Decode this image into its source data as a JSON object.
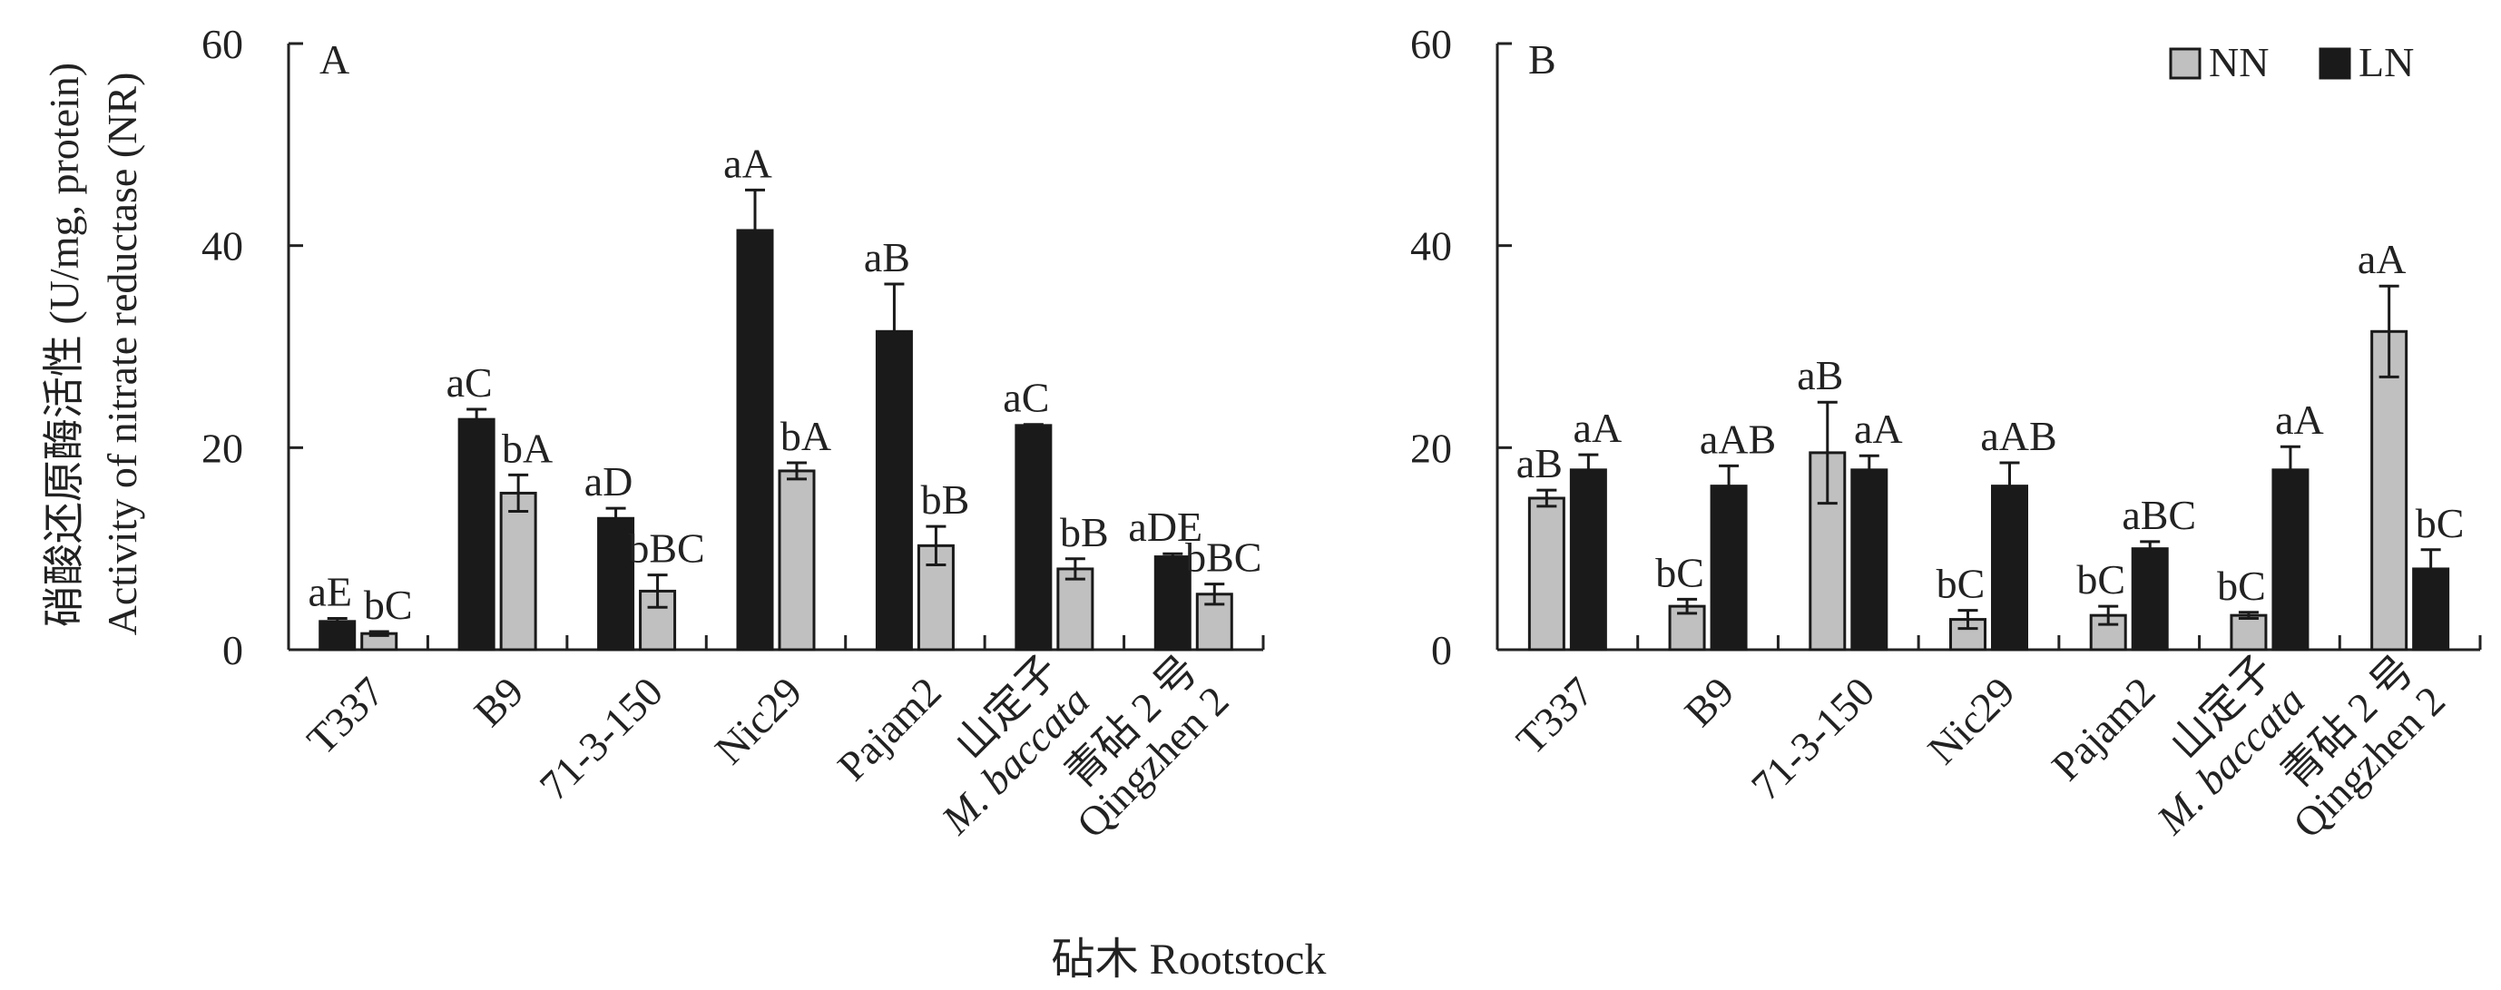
{
  "chart_data": [
    {
      "type": "bar",
      "panel": "A",
      "series_order": [
        "LN",
        "NN"
      ],
      "categories": [
        "T337",
        "B9",
        "71-3-150",
        "Nic29",
        "Pajam2",
        "山定子|M. baccata",
        "青砧 2 号|Qingzhen 2"
      ],
      "series": [
        {
          "name": "LN",
          "values": [
            2.8,
            22.8,
            13.0,
            41.5,
            31.5,
            22.2,
            9.2
          ],
          "errors": [
            0.3,
            1.0,
            1.0,
            4.0,
            4.7,
            0.1,
            0.3
          ],
          "labels": [
            "aE",
            "aC",
            "aD",
            "aA",
            "aB",
            "aC",
            "aDE"
          ]
        },
        {
          "name": "NN",
          "values": [
            1.6,
            15.5,
            5.8,
            17.7,
            10.3,
            8.0,
            5.5
          ],
          "errors": [
            0.2,
            1.8,
            1.6,
            0.8,
            1.9,
            1.0,
            1.0
          ],
          "labels": [
            "bC",
            "bA",
            "bBC",
            "bA",
            "bB",
            "bB",
            "bBC"
          ]
        }
      ],
      "ylim": [
        0,
        60
      ],
      "yticks": [
        0,
        20,
        40,
        60
      ]
    },
    {
      "type": "bar",
      "panel": "B",
      "series_order": [
        "NN",
        "LN"
      ],
      "categories": [
        "T337",
        "B9",
        "71-3-150",
        "Nic29",
        "Pajam2",
        "山定子|M. baccata",
        "青砧 2 号|Qingzhen 2"
      ],
      "series": [
        {
          "name": "NN",
          "values": [
            15.0,
            4.3,
            19.5,
            3.0,
            3.4,
            3.4,
            31.5
          ],
          "errors": [
            0.8,
            0.7,
            5.0,
            0.9,
            0.9,
            0.3,
            4.5
          ],
          "labels": [
            "aB",
            "bC",
            "aB",
            "bC",
            "bC",
            "bC",
            "aA"
          ]
        },
        {
          "name": "LN",
          "values": [
            17.8,
            16.2,
            17.8,
            16.2,
            10.0,
            17.8,
            8.0
          ],
          "errors": [
            1.5,
            2.0,
            1.4,
            2.3,
            0.7,
            2.3,
            1.9
          ],
          "labels": [
            "aA",
            "aAB",
            "aA",
            "aAB",
            "aBC",
            "aA",
            "bC"
          ]
        }
      ],
      "ylim": [
        0,
        60
      ],
      "yticks": [
        0,
        20,
        40,
        60
      ]
    }
  ],
  "y_axis_title_line1": "硝酸还原酶活性 (U/mg, protein)",
  "y_axis_title_line2": "Activity of nitrate reductase (NR)",
  "x_axis_title": "砧木 Rootstock",
  "legend": [
    {
      "name": "NN",
      "color": "#c0c0c0"
    },
    {
      "name": "LN",
      "color": "#1a1a1a"
    }
  ],
  "colors": {
    "NN": "#c0c0c0",
    "LN": "#1a1a1a",
    "axis": "#222222"
  }
}
